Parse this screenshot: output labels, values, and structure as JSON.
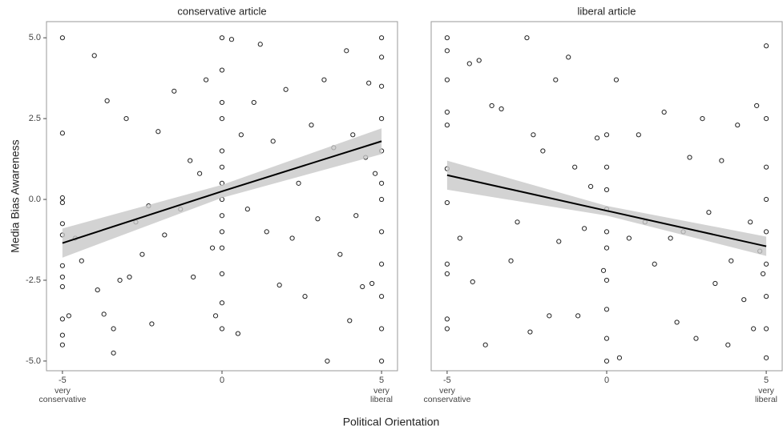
{
  "axis_labels": {
    "x": "Political Orientation",
    "y": "Media Bias Awareness"
  },
  "chart_data": [
    {
      "type": "scatter",
      "title": "conservative article",
      "x": [
        -5,
        -5,
        -5,
        -5,
        -5,
        -5,
        -5,
        -5,
        -5,
        -5,
        -5,
        -5,
        -4.8,
        -4.6,
        -4.4,
        -4,
        -3.9,
        -3.7,
        -3.6,
        -3.4,
        -3.4,
        -3.2,
        -3,
        -2.9,
        -2.7,
        -2.5,
        -2.3,
        -2.2,
        -2,
        -1.8,
        -1.5,
        -1.3,
        -1,
        -0.9,
        -0.7,
        -0.5,
        -0.3,
        -0.2,
        0,
        0,
        0,
        0,
        0,
        0,
        0,
        0,
        0,
        0,
        0,
        0,
        0,
        0,
        0.3,
        0.5,
        0.6,
        0.8,
        1,
        1.2,
        1.4,
        1.6,
        1.8,
        2,
        2.2,
        2.4,
        2.6,
        2.8,
        3,
        3.2,
        3.3,
        3.5,
        3.7,
        3.9,
        4,
        4.1,
        4.2,
        4.4,
        4.5,
        4.6,
        4.7,
        4.8,
        5,
        5,
        5,
        5,
        5,
        5,
        5,
        5,
        5,
        5,
        5,
        5
      ],
      "y": [
        5,
        2.05,
        0.05,
        -0.1,
        -0.75,
        -1.1,
        -2.05,
        -2.4,
        -2.7,
        -3.7,
        -4.2,
        -4.5,
        -3.6,
        -1.2,
        -1.9,
        4.45,
        -2.8,
        -3.55,
        3.05,
        -4,
        -4.75,
        -2.5,
        2.5,
        -2.4,
        -0.7,
        -1.7,
        -0.2,
        -3.85,
        2.1,
        -1.1,
        3.35,
        -0.3,
        1.2,
        -2.4,
        0.8,
        3.7,
        -1.5,
        -3.6,
        5,
        4,
        3,
        2.5,
        1.5,
        1,
        0.5,
        0,
        -0.5,
        -1,
        -1.5,
        -2.3,
        -3.2,
        -4,
        4.95,
        -4.15,
        2,
        -0.3,
        3,
        4.8,
        -1,
        1.8,
        -2.65,
        3.4,
        -1.2,
        0.5,
        -3,
        2.3,
        -0.6,
        3.7,
        -5,
        1.6,
        -1.7,
        4.6,
        -3.75,
        2,
        -0.5,
        -2.7,
        1.3,
        3.6,
        -2.6,
        0.8,
        5,
        4.4,
        3.5,
        2.5,
        1.5,
        0.5,
        0,
        -1,
        -2,
        -3,
        -4,
        -5
      ],
      "fit": {
        "x": [
          -5,
          0,
          5
        ],
        "y": [
          -1.35,
          0.25,
          1.8
        ],
        "lower": [
          -1.8,
          0.05,
          1.4
        ],
        "upper": [
          -0.9,
          0.45,
          2.2
        ]
      },
      "xlim": [
        -5.5,
        5.5
      ],
      "ylim": [
        -5.3,
        5.5
      ],
      "xticks": [
        -5,
        0,
        5
      ],
      "x_end_labels": [
        "very conservative",
        "very liberal"
      ],
      "yticks": [
        {
          "value": -5,
          "label": "-5.0"
        },
        {
          "value": -2.5,
          "label": "-2.5"
        },
        {
          "value": 0,
          "label": "0.0"
        },
        {
          "value": 2.5,
          "label": "2.5"
        },
        {
          "value": 5,
          "label": "5.0"
        }
      ],
      "marker_color": "#222222",
      "fit_color": "#000000",
      "band_color": "#c8c8c8",
      "grid": false
    },
    {
      "type": "scatter",
      "title": "liberal article",
      "x": [
        -5,
        -5,
        -5,
        -5,
        -5,
        -5,
        -5,
        -5,
        -5,
        -5,
        -5,
        -4.6,
        -4.3,
        -4.2,
        -4,
        -3.8,
        -3.6,
        -3.3,
        -3,
        -2.8,
        -2.5,
        -2.4,
        -2.3,
        -2,
        -1.8,
        -1.6,
        -1.5,
        -1.2,
        -1,
        -0.9,
        -0.7,
        -0.5,
        -0.3,
        -0.1,
        0,
        0,
        0,
        0,
        0,
        0,
        0,
        0,
        0,
        0,
        0.3,
        0.4,
        0.7,
        1,
        1.2,
        1.5,
        1.8,
        2,
        2.2,
        2.4,
        2.6,
        2.8,
        3,
        3.2,
        3.4,
        3.6,
        3.8,
        3.9,
        4.1,
        4.3,
        4.5,
        4.6,
        4.7,
        4.8,
        4.9,
        5,
        5,
        5,
        5,
        5,
        5,
        5,
        5,
        5
      ],
      "y": [
        5,
        4.6,
        3.7,
        2.7,
        2.3,
        0.95,
        -0.1,
        -2,
        -2.3,
        -3.7,
        -4,
        -1.2,
        4.2,
        -2.55,
        4.3,
        -4.5,
        2.9,
        2.8,
        -1.9,
        -0.7,
        5,
        -4.1,
        2,
        1.5,
        -3.6,
        3.7,
        -1.3,
        4.4,
        1,
        -3.6,
        -0.9,
        0.4,
        1.9,
        -2.2,
        2,
        1,
        0.3,
        -0.3,
        -1,
        -1.5,
        -2.5,
        -3.4,
        -4.3,
        -5,
        3.7,
        -4.9,
        -1.2,
        2,
        -0.7,
        -2,
        2.7,
        -1.2,
        -3.8,
        -1,
        1.3,
        -4.3,
        2.5,
        -0.4,
        -2.6,
        1.2,
        -4.5,
        -1.9,
        2.3,
        -3.1,
        -0.7,
        -4,
        2.9,
        -1.6,
        -2.3,
        4.75,
        2.5,
        1,
        0,
        -1,
        -2,
        -3,
        -4,
        -4.9
      ],
      "fit": {
        "x": [
          -5,
          0,
          5
        ],
        "y": [
          0.75,
          -0.35,
          -1.45
        ],
        "lower": [
          0.3,
          -0.5,
          -1.75
        ],
        "upper": [
          1.2,
          -0.2,
          -1.15
        ]
      },
      "xlim": [
        -5.5,
        5.5
      ],
      "ylim": [
        -5.3,
        5.5
      ],
      "xticks": [
        -5,
        0,
        5
      ],
      "x_end_labels": [
        "very conservative",
        "very liberal"
      ],
      "marker_color": "#222222",
      "fit_color": "#000000",
      "band_color": "#c8c8c8",
      "grid": false
    }
  ]
}
